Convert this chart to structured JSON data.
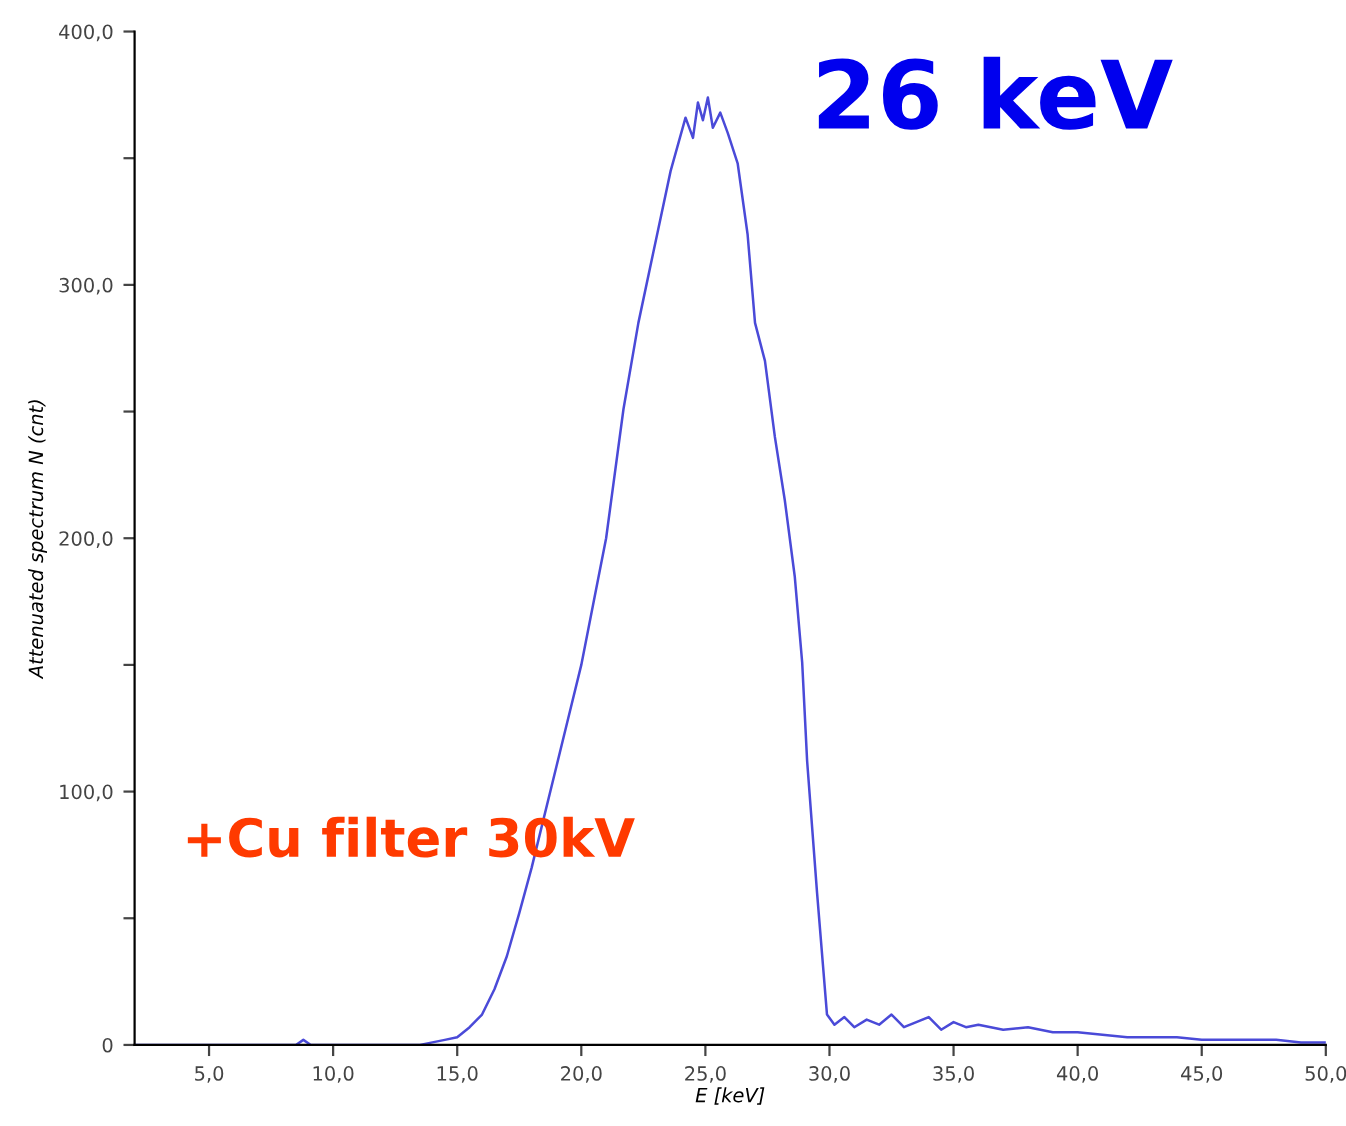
{
  "chart_data": {
    "type": "line",
    "xlabel": "E [keV]",
    "ylabel": "Attenuated spectrum N (cnt)",
    "annotations": [
      "26 keV",
      "+Cu filter 30kV"
    ],
    "series": [
      {
        "color": "#4a4ad8",
        "x": [
          2,
          8.5,
          8.8,
          9.1,
          13.5,
          14,
          14.5,
          15,
          15.5,
          16,
          16.5,
          17,
          17.5,
          18,
          18.5,
          19,
          19.5,
          20,
          20.5,
          21,
          21.7,
          22.3,
          23.1,
          23.6,
          24.2,
          24.5,
          24.7,
          24.9,
          25.1,
          25.3,
          25.6,
          25.9,
          26.3,
          26.7,
          27.0,
          27.4,
          27.8,
          28.2,
          28.6,
          28.9,
          29.1,
          29.5,
          29.9,
          30.2,
          30.6,
          31,
          31.5,
          32,
          32.5,
          33,
          33.5,
          34,
          34.5,
          35,
          35.5,
          36,
          37,
          38,
          39,
          40,
          41,
          42,
          43,
          44,
          45,
          46,
          47,
          48,
          49,
          50
        ],
        "values": [
          0,
          0,
          2,
          0,
          0,
          1,
          2,
          3,
          7,
          12,
          22,
          35,
          52,
          70,
          90,
          110,
          130,
          150,
          175,
          200,
          251,
          285,
          322,
          345,
          366,
          358,
          372,
          365,
          374,
          362,
          368,
          360,
          348,
          320,
          285,
          270,
          240,
          215,
          185,
          151,
          112,
          60,
          12,
          8,
          11,
          7,
          10,
          8,
          12,
          7,
          9,
          11,
          6,
          9,
          7,
          8,
          6,
          7,
          5,
          5,
          4,
          3,
          3,
          3,
          2,
          2,
          2,
          2,
          1,
          1
        ]
      }
    ],
    "xlim": [
      2,
      50
    ],
    "ylim": [
      0,
      400
    ],
    "xticks": [
      {
        "value": 5,
        "label": "5,0"
      },
      {
        "value": 10,
        "label": "10,0"
      },
      {
        "value": 15,
        "label": "15,0"
      },
      {
        "value": 20,
        "label": "20,0"
      },
      {
        "value": 25,
        "label": "25,0"
      },
      {
        "value": 30,
        "label": "30,0"
      },
      {
        "value": 35,
        "label": "35,0"
      },
      {
        "value": 40,
        "label": "40,0"
      },
      {
        "value": 45,
        "label": "45,0"
      },
      {
        "value": 50,
        "label": "50,0"
      }
    ],
    "yticks": [
      0,
      {
        "value": 50,
        "label": null
      },
      {
        "value": 100,
        "label": "100,0"
      },
      {
        "value": 150,
        "label": null
      },
      {
        "value": 200,
        "label": "200,0"
      },
      {
        "value": 250,
        "label": null
      },
      {
        "value": 300,
        "label": "300,0"
      },
      {
        "value": 350,
        "label": null
      },
      {
        "value": 400,
        "label": "400,0"
      }
    ],
    "grid": false,
    "legend": false,
    "marker": "none",
    "line_style": "solid"
  }
}
